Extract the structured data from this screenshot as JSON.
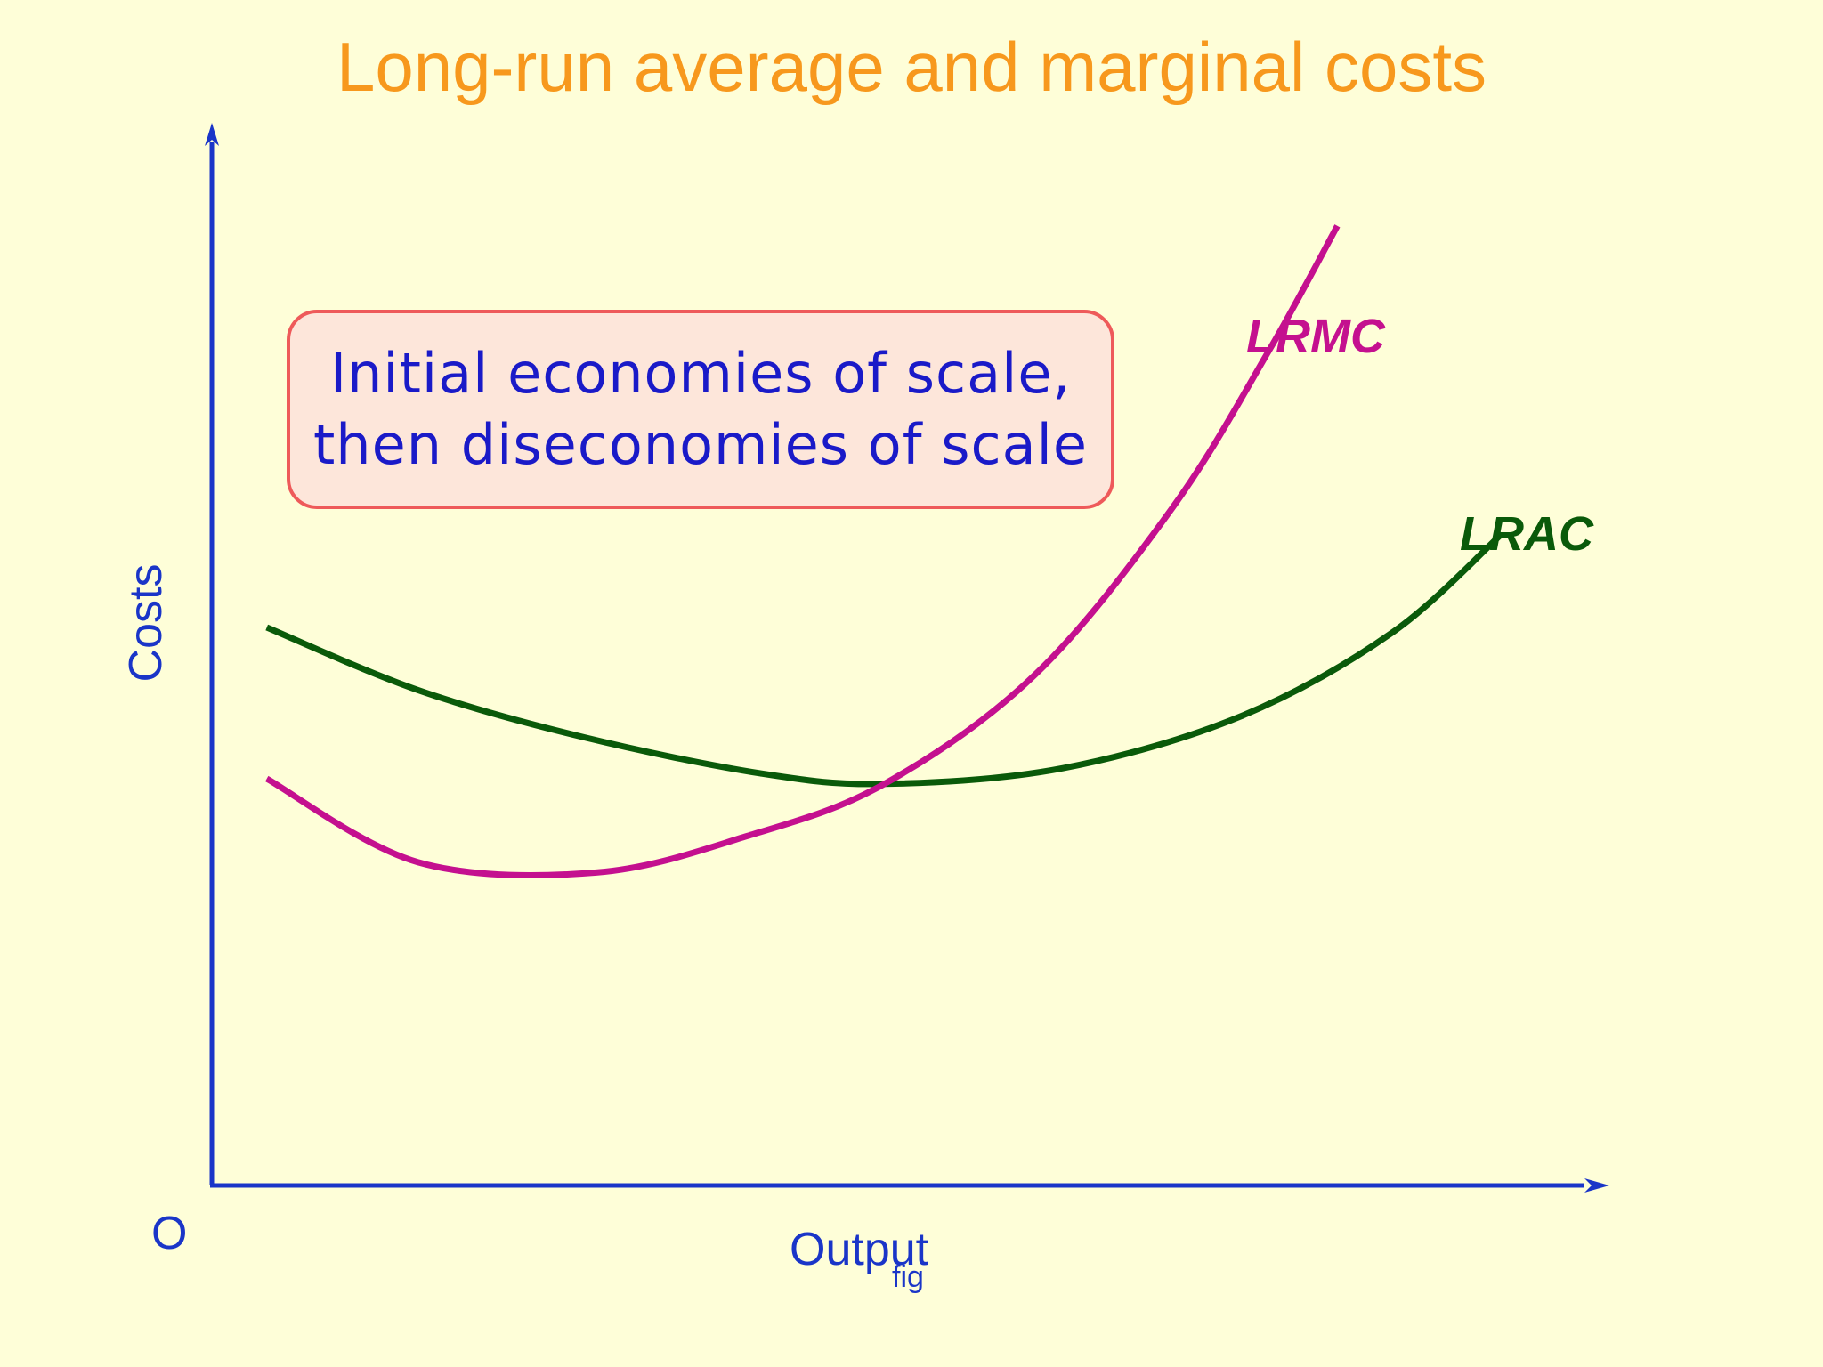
{
  "title": "Long-run average and marginal costs",
  "annotation": "Initial economies of scale,\nthen diseconomies of scale",
  "footnote": "fig",
  "colors": {
    "background": "#fefed8",
    "title": "#f7981d",
    "axes": "#1a35c8",
    "lrac": "#0a5a0a",
    "lrmc": "#c4108f",
    "annotation_border": "#ee5a5a",
    "annotation_fill": "#fde6da",
    "annotation_text": "#1a1ac8"
  },
  "chart_data": {
    "type": "line",
    "title": "Long-run average and marginal costs",
    "xlabel": "Output",
    "ylabel": "Costs",
    "origin_label": "O",
    "xlim": [
      0,
      10
    ],
    "ylim": [
      0,
      10
    ],
    "grid": false,
    "legend": "none (series labeled at curve ends)",
    "series": [
      {
        "name": "LRAC",
        "color": "#0a5a0a",
        "x": [
          0.4,
          1.5,
          2.7,
          4.0,
          4.9,
          6.2,
          7.5,
          8.6,
          9.4
        ],
        "y": [
          5.35,
          4.75,
          4.3,
          3.95,
          3.85,
          4.0,
          4.5,
          5.3,
          6.25
        ]
      },
      {
        "name": "LRMC",
        "color": "#c4108f",
        "x": [
          0.4,
          1.5,
          2.8,
          3.9,
          4.9,
          6.0,
          7.0,
          7.7,
          8.2
        ],
        "y": [
          3.9,
          3.1,
          3.0,
          3.35,
          3.85,
          4.9,
          6.5,
          8.0,
          9.2
        ]
      }
    ]
  }
}
